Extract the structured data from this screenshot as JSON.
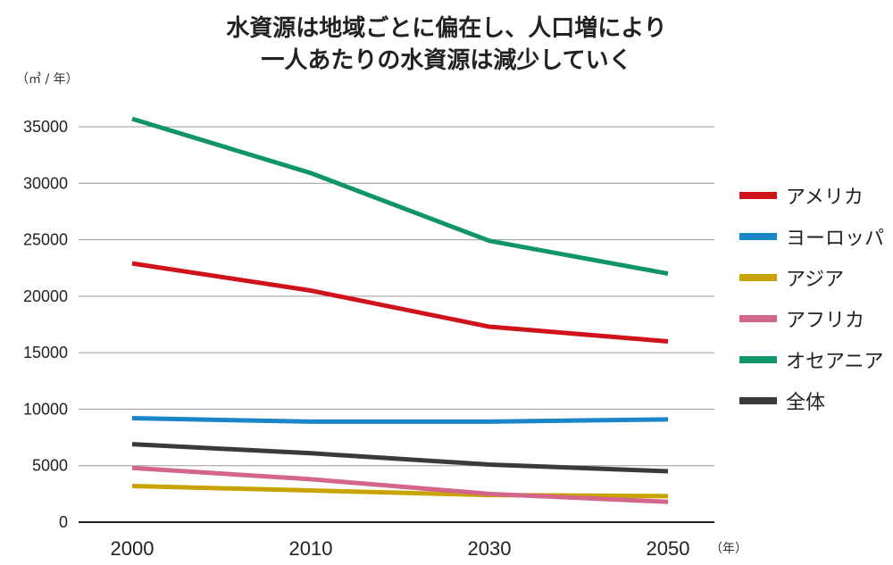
{
  "title_line1": "水資源は地域ごとに偏在し、人口増により",
  "title_line2": "一人あたりの水資源は減少していく",
  "y_unit": "（㎥ / 年）",
  "x_unit": "（年）",
  "chart_data": {
    "type": "line",
    "title": "水資源は地域ごとに偏在し、人口増により 一人あたりの水資源は減少していく",
    "xlabel": "（年）",
    "ylabel": "（㎥ / 年）",
    "x": [
      "2000",
      "2010",
      "2030",
      "2050"
    ],
    "ylim": [
      0,
      35000
    ],
    "yticks": [
      0,
      5000,
      10000,
      15000,
      20000,
      25000,
      30000,
      35000
    ],
    "grid": true,
    "legend_position": "right",
    "series": [
      {
        "name": "アメリカ",
        "color": "#d0121b",
        "values": [
          22900,
          20500,
          17300,
          16000
        ]
      },
      {
        "name": "ヨーロッパ",
        "color": "#1a85c8",
        "values": [
          9200,
          8900,
          8900,
          9100
        ]
      },
      {
        "name": "アジア",
        "color": "#c9a300",
        "values": [
          3200,
          2800,
          2400,
          2300
        ]
      },
      {
        "name": "アフリカ",
        "color": "#d4668c",
        "values": [
          4800,
          3800,
          2500,
          1800
        ]
      },
      {
        "name": "オセアニア",
        "color": "#10946a",
        "values": [
          35700,
          30900,
          24900,
          22000
        ]
      },
      {
        "name": "全体",
        "color": "#3a3a3a",
        "values": [
          6900,
          6100,
          5100,
          4500
        ]
      }
    ]
  }
}
